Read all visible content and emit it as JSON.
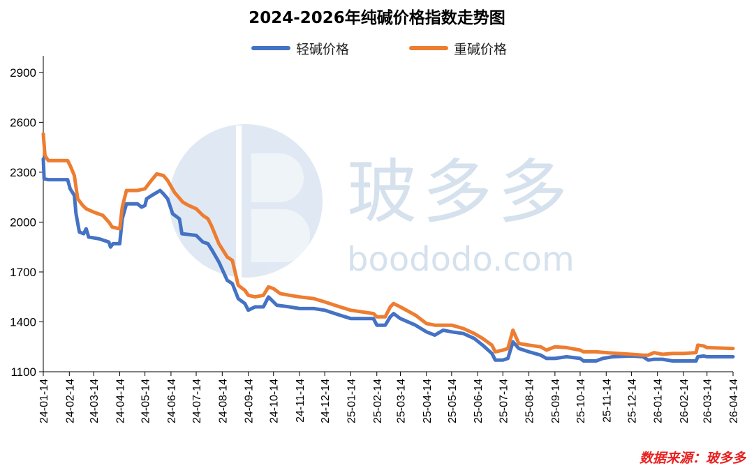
{
  "title": "2024-2026年纯碱价格指数走势图",
  "source": "数据来源：玻多多",
  "watermark": {
    "brand": "玻多多",
    "url": "boododo.com"
  },
  "colors": {
    "light": "#4472c4",
    "heavy": "#ed7d31",
    "source": "#e8201f"
  },
  "chart_data": {
    "type": "line",
    "title": "2024-2026年纯碱价格指数走势图",
    "xlabel": "",
    "ylabel": "",
    "ylim": [
      1100,
      3000
    ],
    "yticks": [
      1100,
      1400,
      1700,
      2000,
      2300,
      2600,
      2900
    ],
    "x_ticks": [
      "24-01-14",
      "24-02-14",
      "24-03-14",
      "24-04-14",
      "24-05-14",
      "24-06-14",
      "24-07-14",
      "24-08-14",
      "24-09-14",
      "24-10-14",
      "24-11-14",
      "24-12-14",
      "25-01-14",
      "25-02-14",
      "25-03-14",
      "25-04-14",
      "25-05-14",
      "25-06-14",
      "25-07-14",
      "25-08-14",
      "25-09-14",
      "25-10-14",
      "25-11-14",
      "25-12-14",
      "26-01-14",
      "26-02-14",
      "26-03-14",
      "26-04-14"
    ],
    "legend_position": "top-center",
    "grid": false,
    "series": [
      {
        "name": "轻碱价格",
        "color": "#4472c4",
        "points": [
          [
            "24-01-14",
            2380
          ],
          [
            "24-01-15",
            2260
          ],
          [
            "24-01-20",
            2255
          ],
          [
            "24-02-12",
            2255
          ],
          [
            "24-02-15",
            2200
          ],
          [
            "24-02-20",
            2160
          ],
          [
            "24-02-22",
            2050
          ],
          [
            "24-02-26",
            1940
          ],
          [
            "24-03-02",
            1930
          ],
          [
            "24-03-05",
            1960
          ],
          [
            "24-03-08",
            1910
          ],
          [
            "24-03-20",
            1900
          ],
          [
            "24-04-01",
            1880
          ],
          [
            "24-04-03",
            1850
          ],
          [
            "24-04-06",
            1870
          ],
          [
            "24-04-14",
            1870
          ],
          [
            "24-04-17",
            2020
          ],
          [
            "24-04-22",
            2110
          ],
          [
            "24-05-05",
            2110
          ],
          [
            "24-05-10",
            2090
          ],
          [
            "24-05-14",
            2100
          ],
          [
            "24-05-16",
            2140
          ],
          [
            "24-05-22",
            2160
          ],
          [
            "24-06-01",
            2190
          ],
          [
            "24-06-05",
            2170
          ],
          [
            "24-06-10",
            2140
          ],
          [
            "24-06-16",
            2050
          ],
          [
            "24-06-24",
            2020
          ],
          [
            "24-06-27",
            1930
          ],
          [
            "24-07-14",
            1920
          ],
          [
            "24-07-22",
            1880
          ],
          [
            "24-07-28",
            1870
          ],
          [
            "24-08-02",
            1830
          ],
          [
            "24-08-10",
            1760
          ],
          [
            "24-08-20",
            1650
          ],
          [
            "24-08-26",
            1630
          ],
          [
            "24-09-02",
            1540
          ],
          [
            "24-09-10",
            1510
          ],
          [
            "24-09-14",
            1470
          ],
          [
            "24-09-22",
            1490
          ],
          [
            "24-10-02",
            1490
          ],
          [
            "24-10-08",
            1550
          ],
          [
            "24-10-12",
            1530
          ],
          [
            "24-10-18",
            1500
          ],
          [
            "24-11-02",
            1490
          ],
          [
            "24-11-14",
            1480
          ],
          [
            "24-12-01",
            1480
          ],
          [
            "24-12-14",
            1470
          ],
          [
            "25-01-01",
            1440
          ],
          [
            "25-01-14",
            1420
          ],
          [
            "25-02-10",
            1420
          ],
          [
            "25-02-14",
            1380
          ],
          [
            "25-02-24",
            1380
          ],
          [
            "25-03-02",
            1430
          ],
          [
            "25-03-06",
            1450
          ],
          [
            "25-03-14",
            1420
          ],
          [
            "25-04-01",
            1380
          ],
          [
            "25-04-14",
            1340
          ],
          [
            "25-04-24",
            1320
          ],
          [
            "25-05-04",
            1350
          ],
          [
            "25-05-14",
            1340
          ],
          [
            "25-05-28",
            1330
          ],
          [
            "25-06-10",
            1300
          ],
          [
            "25-06-20",
            1260
          ],
          [
            "25-07-01",
            1210
          ],
          [
            "25-07-05",
            1170
          ],
          [
            "25-07-14",
            1170
          ],
          [
            "25-07-20",
            1180
          ],
          [
            "25-07-26",
            1280
          ],
          [
            "25-08-02",
            1240
          ],
          [
            "25-08-14",
            1220
          ],
          [
            "25-08-28",
            1200
          ],
          [
            "25-09-04",
            1180
          ],
          [
            "25-09-14",
            1180
          ],
          [
            "25-09-28",
            1190
          ],
          [
            "25-10-14",
            1180
          ],
          [
            "25-10-18",
            1165
          ],
          [
            "25-11-02",
            1165
          ],
          [
            "25-11-10",
            1180
          ],
          [
            "25-11-22",
            1190
          ],
          [
            "25-12-14",
            1195
          ],
          [
            "25-12-28",
            1190
          ],
          [
            "26-01-03",
            1170
          ],
          [
            "26-01-10",
            1175
          ],
          [
            "26-01-20",
            1175
          ],
          [
            "26-02-01",
            1165
          ],
          [
            "26-02-14",
            1165
          ],
          [
            "26-03-01",
            1165
          ],
          [
            "26-03-03",
            1190
          ],
          [
            "26-03-10",
            1195
          ],
          [
            "26-03-14",
            1190
          ],
          [
            "26-04-14",
            1190
          ]
        ]
      },
      {
        "name": "重碱价格",
        "color": "#ed7d31",
        "points": [
          [
            "24-01-14",
            2530
          ],
          [
            "24-01-16",
            2400
          ],
          [
            "24-01-20",
            2370
          ],
          [
            "24-02-12",
            2370
          ],
          [
            "24-02-15",
            2340
          ],
          [
            "24-02-20",
            2280
          ],
          [
            "24-02-24",
            2140
          ],
          [
            "24-03-01",
            2100
          ],
          [
            "24-03-05",
            2080
          ],
          [
            "24-03-14",
            2060
          ],
          [
            "24-03-25",
            2040
          ],
          [
            "24-04-01",
            2000
          ],
          [
            "24-04-05",
            1970
          ],
          [
            "24-04-14",
            1960
          ],
          [
            "24-04-17",
            2090
          ],
          [
            "24-04-22",
            2190
          ],
          [
            "24-05-05",
            2190
          ],
          [
            "24-05-14",
            2200
          ],
          [
            "24-05-20",
            2240
          ],
          [
            "24-05-28",
            2290
          ],
          [
            "24-06-05",
            2280
          ],
          [
            "24-06-10",
            2250
          ],
          [
            "24-06-18",
            2180
          ],
          [
            "24-06-28",
            2120
          ],
          [
            "24-07-05",
            2100
          ],
          [
            "24-07-14",
            2080
          ],
          [
            "24-07-22",
            2040
          ],
          [
            "24-07-28",
            2020
          ],
          [
            "24-08-01",
            1980
          ],
          [
            "24-08-10",
            1870
          ],
          [
            "24-08-20",
            1790
          ],
          [
            "24-08-26",
            1770
          ],
          [
            "24-09-02",
            1620
          ],
          [
            "24-09-10",
            1590
          ],
          [
            "24-09-14",
            1560
          ],
          [
            "24-09-22",
            1550
          ],
          [
            "24-10-02",
            1560
          ],
          [
            "24-10-08",
            1610
          ],
          [
            "24-10-14",
            1600
          ],
          [
            "24-10-22",
            1570
          ],
          [
            "24-11-02",
            1560
          ],
          [
            "24-11-14",
            1550
          ],
          [
            "24-12-01",
            1540
          ],
          [
            "24-12-14",
            1520
          ],
          [
            "25-01-01",
            1490
          ],
          [
            "25-01-14",
            1470
          ],
          [
            "25-02-10",
            1450
          ],
          [
            "25-02-14",
            1430
          ],
          [
            "25-02-24",
            1430
          ],
          [
            "25-03-02",
            1490
          ],
          [
            "25-03-06",
            1510
          ],
          [
            "25-03-14",
            1490
          ],
          [
            "25-04-01",
            1440
          ],
          [
            "25-04-14",
            1390
          ],
          [
            "25-04-24",
            1380
          ],
          [
            "25-05-14",
            1380
          ],
          [
            "25-05-28",
            1360
          ],
          [
            "25-06-10",
            1330
          ],
          [
            "25-06-20",
            1300
          ],
          [
            "25-07-01",
            1260
          ],
          [
            "25-07-05",
            1220
          ],
          [
            "25-07-14",
            1230
          ],
          [
            "25-07-20",
            1240
          ],
          [
            "25-07-26",
            1350
          ],
          [
            "25-08-02",
            1270
          ],
          [
            "25-08-14",
            1260
          ],
          [
            "25-08-28",
            1250
          ],
          [
            "25-09-04",
            1230
          ],
          [
            "25-09-14",
            1250
          ],
          [
            "25-09-28",
            1245
          ],
          [
            "25-10-14",
            1230
          ],
          [
            "25-10-18",
            1220
          ],
          [
            "25-11-02",
            1220
          ],
          [
            "25-11-14",
            1215
          ],
          [
            "25-11-28",
            1210
          ],
          [
            "25-12-14",
            1205
          ],
          [
            "25-12-28",
            1200
          ],
          [
            "26-01-03",
            1200
          ],
          [
            "26-01-10",
            1215
          ],
          [
            "26-01-20",
            1205
          ],
          [
            "26-02-01",
            1210
          ],
          [
            "26-02-14",
            1210
          ],
          [
            "26-03-01",
            1215
          ],
          [
            "26-03-03",
            1260
          ],
          [
            "26-03-10",
            1255
          ],
          [
            "26-03-14",
            1245
          ],
          [
            "26-04-14",
            1240
          ]
        ]
      }
    ]
  }
}
